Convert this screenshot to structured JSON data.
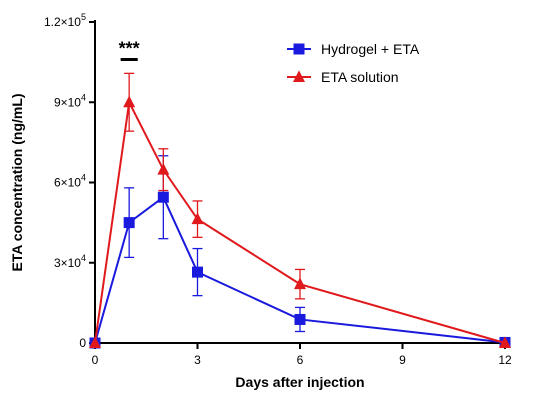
{
  "chart_data": {
    "type": "line",
    "xlabel": "Days after injection",
    "ylabel": "ETA concentration (ng/mL)",
    "xlim": [
      0,
      12
    ],
    "ylim": [
      0,
      120000
    ],
    "x_ticks": [
      0,
      3,
      6,
      9,
      12
    ],
    "y_ticks": [
      {
        "value": 0,
        "mantissa": "0",
        "exponent": ""
      },
      {
        "value": 30000,
        "mantissa": "3×10",
        "exponent": "4"
      },
      {
        "value": 60000,
        "mantissa": "6×10",
        "exponent": "4"
      },
      {
        "value": 90000,
        "mantissa": "9×10",
        "exponent": "4"
      },
      {
        "value": 120000,
        "mantissa": "1.2×10",
        "exponent": "5"
      }
    ],
    "grid": false,
    "legend_position": "top-right",
    "annotations": [
      {
        "text": "***",
        "x_start": 0.75,
        "x_end": 1.25,
        "y": 106000
      }
    ],
    "series": [
      {
        "name": "Hydrogel + ETA",
        "color": "#1a1adf",
        "marker": "square",
        "x": [
          0,
          1,
          2,
          3,
          6,
          12
        ],
        "y": [
          0,
          45000,
          54500,
          26500,
          8800,
          200
        ],
        "error": [
          0,
          13000,
          15500,
          8800,
          4500,
          0
        ]
      },
      {
        "name": "ETA solution",
        "color": "#e0191c",
        "marker": "triangle",
        "x": [
          0,
          1,
          2,
          3,
          6,
          12
        ],
        "y": [
          0,
          90000,
          64800,
          46300,
          22000,
          0
        ],
        "error": [
          0,
          10800,
          7800,
          6800,
          5500,
          0
        ]
      }
    ]
  }
}
